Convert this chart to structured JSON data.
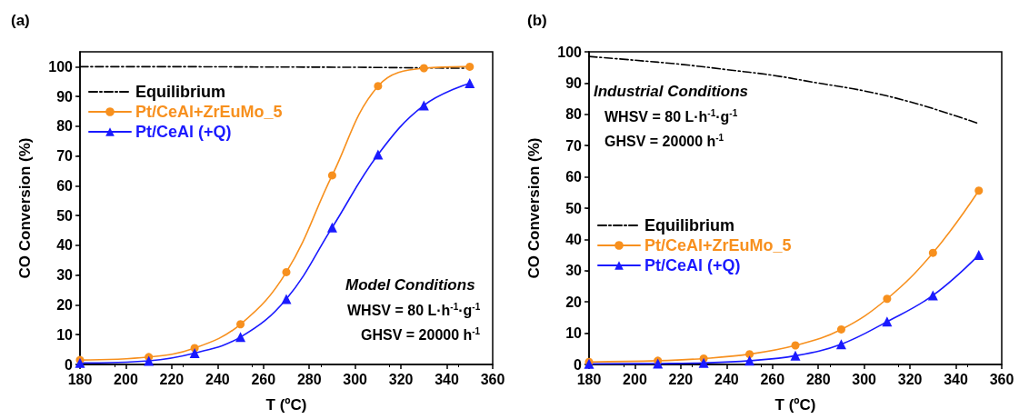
{
  "chart_data": [
    {
      "type": "line",
      "title": "(a)",
      "xlabel": "T (ºC)",
      "ylabel": "CO Conversion (%)",
      "xlim": [
        180,
        360
      ],
      "xticks": [
        180,
        200,
        220,
        240,
        260,
        280,
        300,
        320,
        340,
        360
      ],
      "ylim": [
        0,
        105
      ],
      "yticks": [
        0,
        10,
        20,
        30,
        40,
        50,
        60,
        70,
        80,
        90,
        100
      ],
      "legend": "top left",
      "grid": false,
      "annotations": [
        "Model Conditions",
        "WHSV = 80 L·h$^{-1}$·g$^{-1}$",
        "GHSV = 20000 h$^{-1}$"
      ],
      "series": [
        {
          "name": "Equilibrium",
          "color": "#000000",
          "marker": "none",
          "line_style": "dashed",
          "x": [
            180,
            220,
            260,
            300,
            330,
            350
          ],
          "values": [
            100,
            100,
            99.9,
            99.8,
            99.6,
            99.5
          ]
        },
        {
          "name": "Pt/CeAl+ZrEuMo_5",
          "color": "#f7901e",
          "marker": "circle",
          "line_style": "solid",
          "x": [
            180,
            210,
            230,
            250,
            270,
            290,
            310,
            330,
            350
          ],
          "values": [
            1.5,
            2.5,
            5.5,
            13.5,
            31,
            63.5,
            93.5,
            99.5,
            100
          ]
        },
        {
          "name": "Pt/CeAl (+Q)",
          "color": "#1a1aff",
          "marker": "triangle",
          "line_style": "solid",
          "x": [
            180,
            210,
            230,
            250,
            270,
            290,
            310,
            330,
            350
          ],
          "values": [
            0.5,
            1.2,
            3.8,
            9.2,
            22,
            46,
            70.5,
            87,
            94.5
          ]
        }
      ]
    },
    {
      "type": "line",
      "title": "(b)",
      "xlabel": "T (ºC)",
      "ylabel": "CO Conversion (%)",
      "xlim": [
        180,
        360
      ],
      "xticks": [
        180,
        200,
        220,
        240,
        260,
        280,
        300,
        320,
        340,
        360
      ],
      "ylim": [
        0,
        100
      ],
      "yticks": [
        0,
        10,
        20,
        30,
        40,
        50,
        60,
        70,
        80,
        90,
        100
      ],
      "legend": "bottom left",
      "grid": false,
      "annotations": [
        "Industrial Conditions",
        "WHSV = 80 L·h$^{-1}$·g$^{-1}$",
        "GHSV = 20000 h$^{-1}$"
      ],
      "series": [
        {
          "name": "Equilibrium",
          "color": "#000000",
          "marker": "none",
          "line_style": "dashed",
          "x": [
            180,
            200,
            220,
            240,
            260,
            280,
            300,
            320,
            340,
            350
          ],
          "values": [
            98.5,
            97.3,
            96,
            94.3,
            92.5,
            90,
            87.5,
            84,
            79.5,
            77
          ]
        },
        {
          "name": "Pt/CeAl+ZrEuMo_5",
          "color": "#f7901e",
          "marker": "circle",
          "line_style": "solid",
          "x": [
            180,
            210,
            230,
            250,
            270,
            290,
            310,
            330,
            350
          ],
          "values": [
            0.8,
            1.2,
            1.9,
            3.3,
            6.1,
            11.2,
            21,
            35.7,
            55.6
          ]
        },
        {
          "name": "Pt/CeAl (+Q)",
          "color": "#1a1aff",
          "marker": "triangle",
          "line_style": "solid",
          "x": [
            180,
            210,
            230,
            250,
            270,
            290,
            310,
            330,
            350
          ],
          "values": [
            0.2,
            0.3,
            0.5,
            1.2,
            2.8,
            6.5,
            13.7,
            22.1,
            35
          ]
        }
      ]
    }
  ]
}
